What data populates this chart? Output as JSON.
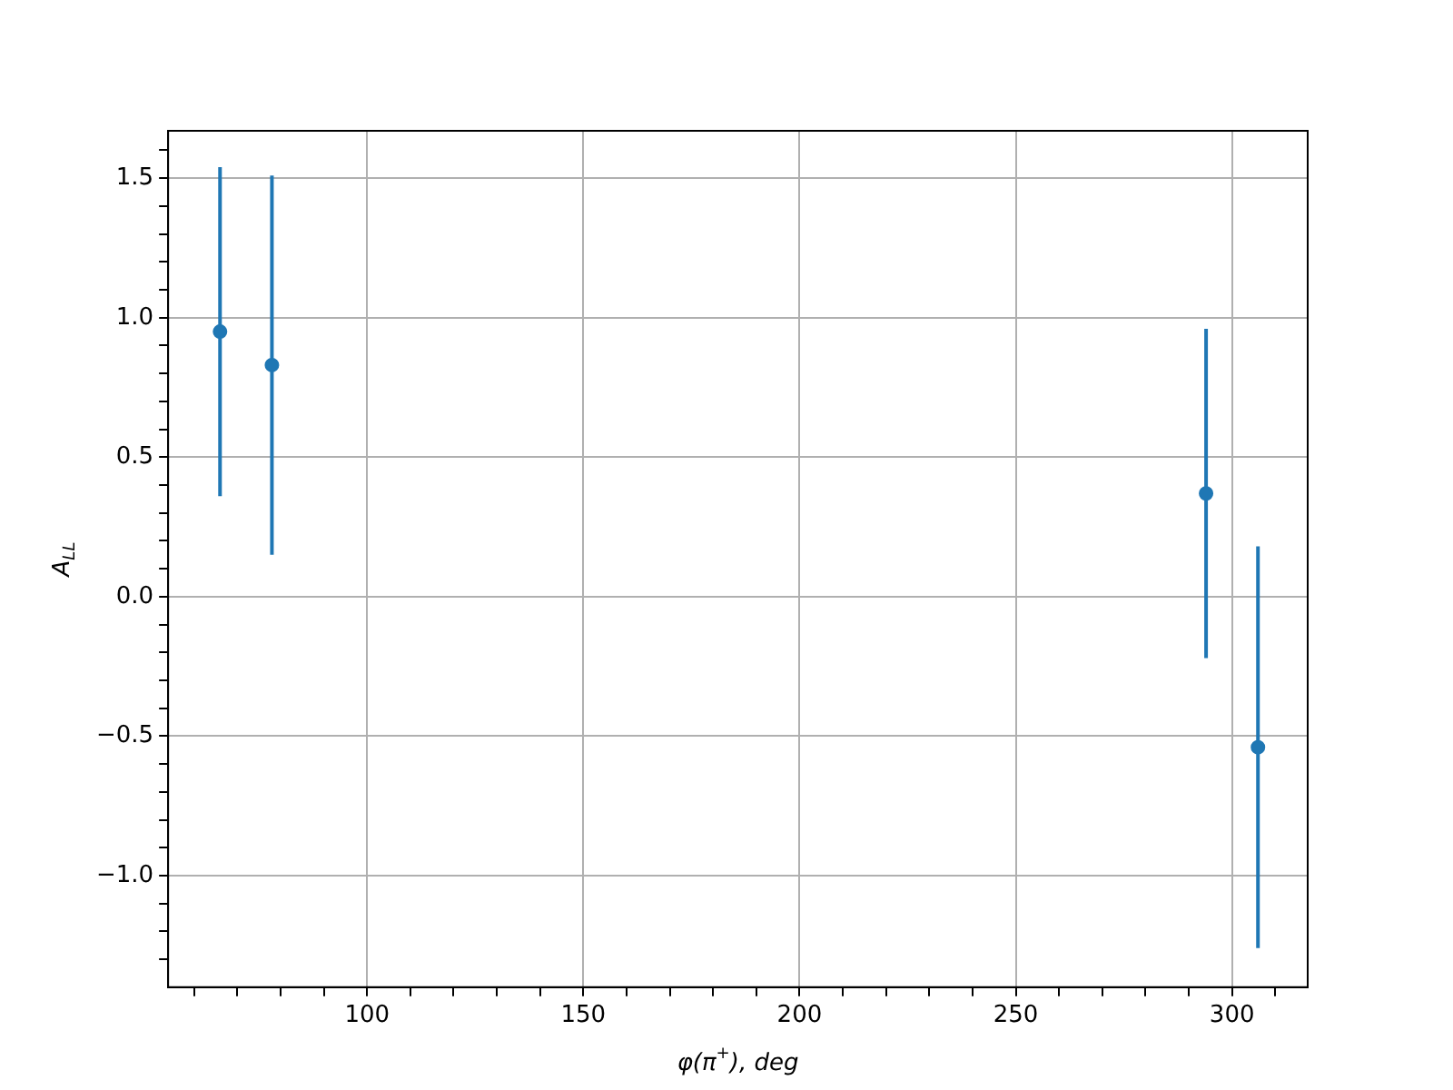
{
  "chart_data": {
    "type": "scatter",
    "xlabel": "φ(π$^{+}$), deg",
    "ylabel": "A$_{LL}$",
    "series": [
      {
        "color": "#1f77b4",
        "x": [
          66,
          78,
          294,
          306
        ],
        "values": [
          0.95,
          0.83,
          0.37,
          -0.54
        ],
        "errors": [
          0.59,
          0.68,
          0.59,
          0.72
        ]
      }
    ],
    "xlim": [
      54,
      317.5
    ],
    "ylim": [
      -1.4,
      1.67
    ],
    "xticks": [
      {
        "value": 60,
        "label": null
      },
      {
        "value": 70,
        "label": null
      },
      {
        "value": 80,
        "label": null
      },
      {
        "value": 90,
        "label": null
      },
      100,
      {
        "value": 110,
        "label": null
      },
      {
        "value": 120,
        "label": null
      },
      {
        "value": 130,
        "label": null
      },
      {
        "value": 140,
        "label": null
      },
      150,
      {
        "value": 160,
        "label": null
      },
      {
        "value": 170,
        "label": null
      },
      {
        "value": 180,
        "label": null
      },
      {
        "value": 190,
        "label": null
      },
      200,
      {
        "value": 210,
        "label": null
      },
      {
        "value": 220,
        "label": null
      },
      {
        "value": 230,
        "label": null
      },
      {
        "value": 240,
        "label": null
      },
      250,
      {
        "value": 260,
        "label": null
      },
      {
        "value": 270,
        "label": null
      },
      {
        "value": 280,
        "label": null
      },
      {
        "value": 290,
        "label": null
      },
      300,
      {
        "value": 310,
        "label": null
      }
    ],
    "yticks": [
      {
        "value": -1.3,
        "label": null
      },
      {
        "value": -1.2,
        "label": null
      },
      {
        "value": -1.1,
        "label": null
      },
      {
        "value": -1.0,
        "label": "−1.0"
      },
      {
        "value": -0.9,
        "label": null
      },
      {
        "value": -0.8,
        "label": null
      },
      {
        "value": -0.7,
        "label": null
      },
      {
        "value": -0.6,
        "label": null
      },
      {
        "value": -0.5,
        "label": "−0.5"
      },
      {
        "value": -0.4,
        "label": null
      },
      {
        "value": -0.3,
        "label": null
      },
      {
        "value": -0.2,
        "label": null
      },
      {
        "value": -0.1,
        "label": null
      },
      {
        "value": 0,
        "label": "0.0"
      },
      {
        "value": 0.1,
        "label": null
      },
      {
        "value": 0.2,
        "label": null
      },
      {
        "value": 0.3,
        "label": null
      },
      {
        "value": 0.4,
        "label": null
      },
      {
        "value": 0.5,
        "label": "0.5"
      },
      {
        "value": 0.6,
        "label": null
      },
      {
        "value": 0.7,
        "label": null
      },
      {
        "value": 0.8,
        "label": null
      },
      {
        "value": 0.9,
        "label": null
      },
      {
        "value": 1.0,
        "label": "1.0"
      },
      {
        "value": 1.1,
        "label": null
      },
      {
        "value": 1.2,
        "label": null
      },
      {
        "value": 1.3,
        "label": null
      },
      {
        "value": 1.4,
        "label": null
      },
      {
        "value": 1.5,
        "label": "1.5"
      },
      {
        "value": 1.6,
        "label": null
      }
    ],
    "grid": true,
    "marker": "circle"
  }
}
